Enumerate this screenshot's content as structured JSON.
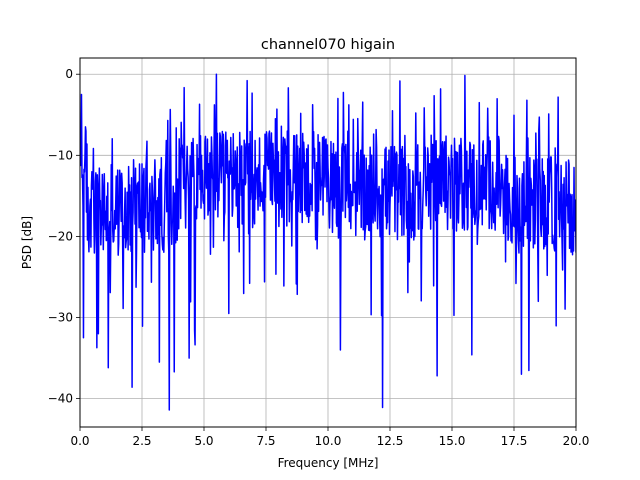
{
  "chart_data": {
    "type": "line",
    "title": "channel070 higain",
    "xlabel": "Frequency [MHz]",
    "ylabel": "PSD [dB]",
    "xlim": [
      0,
      20
    ],
    "ylim": [
      -43.5,
      2
    ],
    "grid": true,
    "x_ticks": [
      0,
      2.5,
      5,
      7.5,
      10,
      12.5,
      15,
      17.5,
      20
    ],
    "x_tick_labels": [
      "0.0",
      "2.5",
      "5.0",
      "7.5",
      "10.0",
      "12.5",
      "15.0",
      "17.5",
      "20.0"
    ],
    "y_ticks": [
      0,
      -10,
      -20,
      -30,
      -40
    ],
    "y_tick_labels": [
      "0",
      "−10",
      "−20",
      "−30",
      "−40"
    ],
    "series": [
      {
        "color": "#0000ff",
        "sample_step": 0.02,
        "x_range": [
          0,
          20
        ],
        "peak_points": [
          {
            "x": 0.05,
            "y": -2.5
          },
          {
            "x": 5.5,
            "y": 0
          },
          {
            "x": 10.4,
            "y": -3
          },
          {
            "x": 12.6,
            "y": -4.5
          },
          {
            "x": 16.1,
            "y": -3.5
          }
        ],
        "trough_points": [
          {
            "x": 0.15,
            "y": -32.5
          },
          {
            "x": 1.15,
            "y": -36.2
          },
          {
            "x": 2.1,
            "y": -38.6
          },
          {
            "x": 3.2,
            "y": -35.5
          },
          {
            "x": 3.6,
            "y": -41.4
          },
          {
            "x": 3.8,
            "y": -36.7
          },
          {
            "x": 4.4,
            "y": -35
          },
          {
            "x": 6.0,
            "y": -29.5
          },
          {
            "x": 10.5,
            "y": -34
          },
          {
            "x": 12.2,
            "y": -41.1
          },
          {
            "x": 14.4,
            "y": -37.2
          },
          {
            "x": 15.8,
            "y": -34.6
          },
          {
            "x": 17.8,
            "y": -37
          }
        ]
      }
    ]
  }
}
